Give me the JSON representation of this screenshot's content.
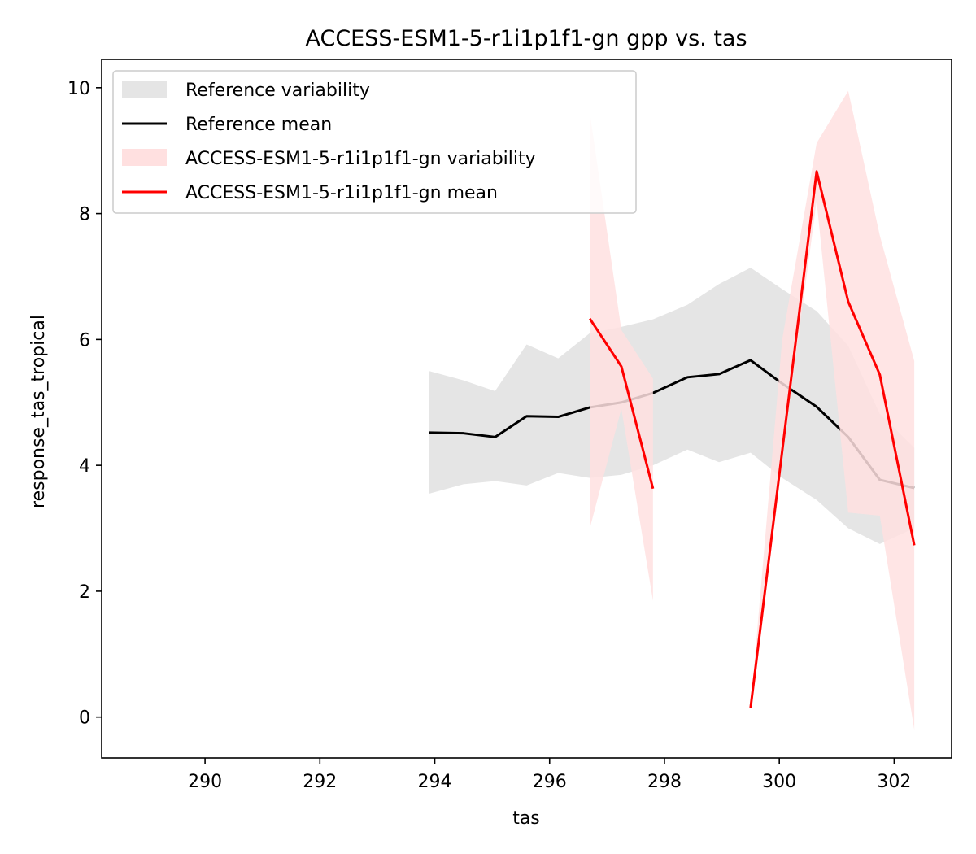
{
  "chart_data": {
    "type": "line",
    "title": "ACCESS-ESM1-5-r1i1p1f1-gn gpp vs. tas",
    "xlabel": "tas",
    "ylabel": "response_tas_tropical",
    "xlim": [
      288.2,
      303.0
    ],
    "ylim": [
      -0.65,
      10.45
    ],
    "xticks": [
      290,
      292,
      294,
      296,
      298,
      300,
      302
    ],
    "yticks": [
      0,
      2,
      4,
      6,
      8,
      10
    ],
    "grid": false,
    "legend_position": "top-left",
    "series": [
      {
        "name": "Reference variability",
        "kind": "band",
        "color": "#e5e5e5",
        "x": [
          293.9,
          294.5,
          295.05,
          295.6,
          296.15,
          296.7,
          297.25,
          297.8,
          298.4,
          298.95,
          299.5,
          300.05,
          300.65,
          301.2,
          301.75,
          302.35
        ],
        "lower": [
          3.55,
          3.7,
          3.75,
          3.68,
          3.88,
          3.8,
          3.85,
          4.0,
          4.25,
          4.05,
          4.2,
          3.8,
          3.45,
          3.0,
          2.75,
          3.0
        ],
        "upper": [
          5.5,
          5.35,
          5.18,
          5.92,
          5.7,
          6.1,
          6.2,
          6.32,
          6.55,
          6.88,
          7.14,
          6.8,
          6.45,
          5.9,
          4.82,
          4.28
        ]
      },
      {
        "name": "Reference mean",
        "kind": "line",
        "color": "#000000",
        "x": [
          293.9,
          294.5,
          295.05,
          295.6,
          296.15,
          296.7,
          297.25,
          297.8,
          298.4,
          298.95,
          299.5,
          300.05,
          300.65,
          301.2,
          301.75,
          302.35
        ],
        "y": [
          4.52,
          4.51,
          4.45,
          4.78,
          4.77,
          4.92,
          5.0,
          5.15,
          5.4,
          5.45,
          5.67,
          5.3,
          4.93,
          4.45,
          3.77,
          3.64
        ]
      },
      {
        "name": "ACCESS-ESM1-5-r1i1p1f1-gn variability",
        "kind": "band",
        "color": "#ffe0e0",
        "segments": [
          {
            "x": [
              296.7,
              297.25,
              297.8
            ],
            "lower": [
              3.0,
              4.9,
              1.85
            ],
            "upper": [
              9.6,
              6.15,
              5.38
            ]
          },
          {
            "x": [
              299.5,
              300.05,
              300.65,
              301.2,
              301.75,
              302.35
            ],
            "lower": [
              0.15,
              4.1,
              8.2,
              3.25,
              3.2,
              -0.2
            ],
            "upper": [
              0.15,
              6.0,
              9.12,
              9.95,
              7.65,
              5.66
            ]
          }
        ]
      },
      {
        "name": "ACCESS-ESM1-5-r1i1p1f1-gn mean",
        "kind": "line",
        "color": "#ff0000",
        "segments": [
          {
            "x": [
              296.7,
              297.25,
              297.8
            ],
            "y": [
              6.33,
              5.57,
              3.63
            ]
          },
          {
            "x": [
              299.5,
              300.65,
              301.2,
              301.75,
              302.35
            ],
            "y": [
              0.15,
              8.67,
              6.6,
              5.44,
              2.73
            ]
          }
        ]
      }
    ]
  }
}
